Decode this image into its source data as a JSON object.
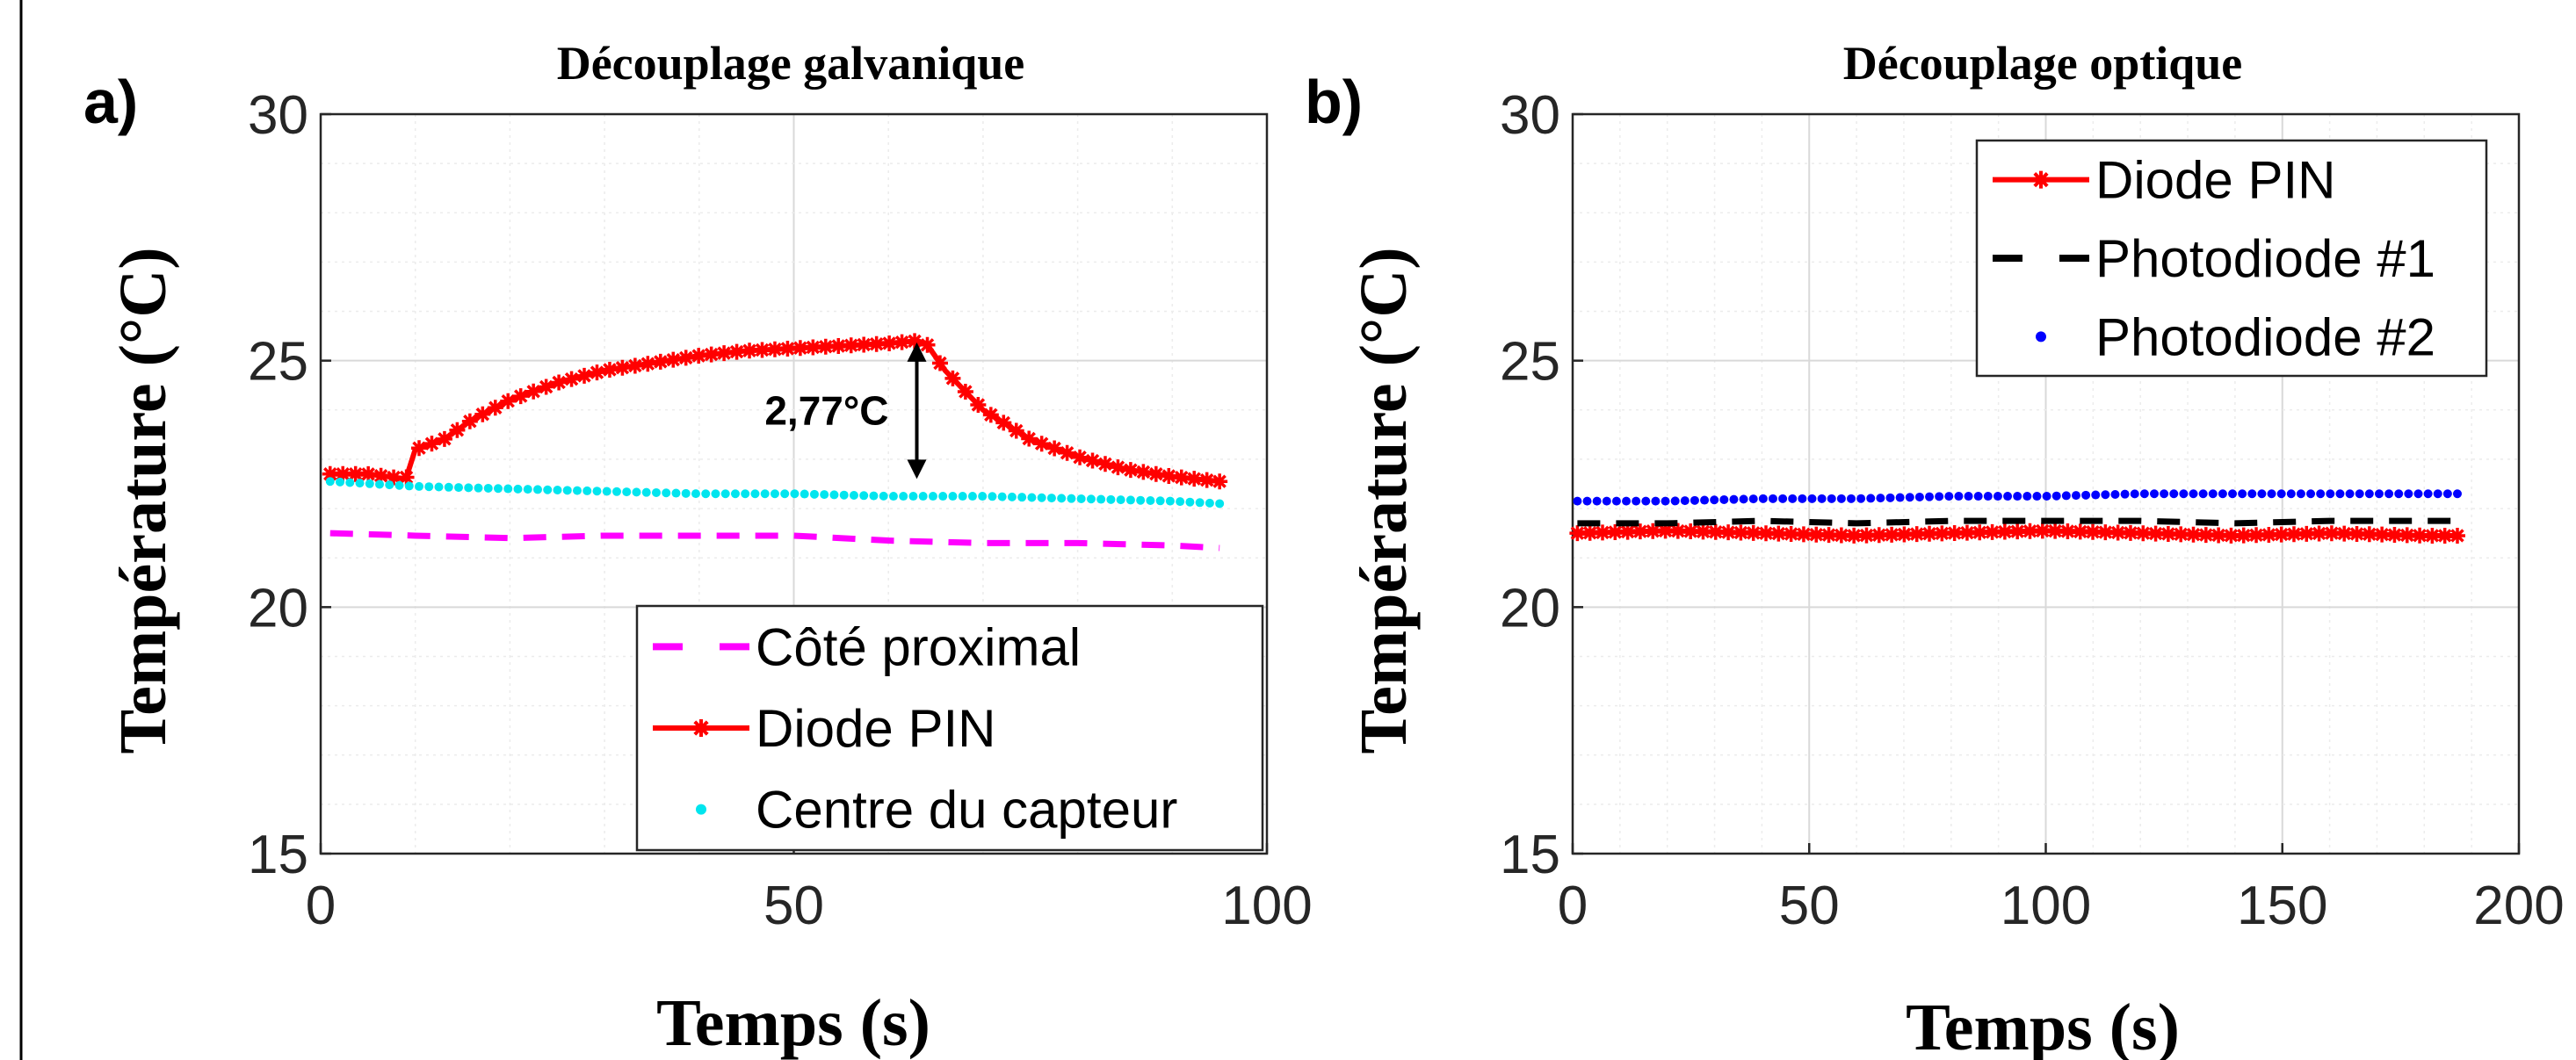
{
  "chart_data": [
    {
      "panel_label": "a)",
      "type": "line",
      "title": "Découplage galvanique",
      "xlabel": "Temps (s)",
      "ylabel": "Température (°C)",
      "xlim": [
        0,
        100
      ],
      "ylim": [
        15,
        30
      ],
      "xticks": [
        "0",
        "50",
        "100"
      ],
      "yticks": [
        "15",
        "20",
        "25",
        "30"
      ],
      "grid": true,
      "legend_position": "bottom-right",
      "annotation": {
        "text": "2,77°C",
        "x": 63,
        "y_from": 22.6,
        "y_to": 25.37
      },
      "series": [
        {
          "name": "Côté proximal",
          "color": "#ff00ff",
          "style": "dashed",
          "x": [
            1,
            10,
            20,
            30,
            40,
            50,
            60,
            70,
            80,
            90,
            95
          ],
          "y": [
            21.5,
            21.45,
            21.4,
            21.45,
            21.45,
            21.45,
            21.35,
            21.3,
            21.3,
            21.25,
            21.2
          ]
        },
        {
          "name": "Diode PIN",
          "color": "#ff0000",
          "style": "solid-star",
          "x": [
            1,
            5,
            9,
            10,
            13,
            16,
            20,
            25,
            30,
            35,
            40,
            45,
            50,
            55,
            60,
            63,
            64,
            66,
            70,
            75,
            80,
            85,
            90,
            95
          ],
          "y": [
            22.7,
            22.7,
            22.6,
            23.2,
            23.4,
            23.8,
            24.2,
            24.55,
            24.8,
            24.95,
            25.1,
            25.2,
            25.25,
            25.3,
            25.35,
            25.4,
            25.35,
            24.8,
            24.0,
            23.4,
            23.05,
            22.8,
            22.65,
            22.55
          ]
        },
        {
          "name": "Centre du capteur",
          "color": "#00e5ee",
          "style": "dotted",
          "x": [
            1,
            10,
            20,
            30,
            40,
            50,
            60,
            70,
            80,
            90,
            95
          ],
          "y": [
            22.55,
            22.45,
            22.4,
            22.35,
            22.3,
            22.3,
            22.25,
            22.25,
            22.2,
            22.15,
            22.1
          ]
        }
      ]
    },
    {
      "panel_label": "b)",
      "type": "line",
      "title": "Découplage optique",
      "xlabel": "Temps (s)",
      "ylabel": "Température (°C)",
      "xlim": [
        0,
        200
      ],
      "ylim": [
        15,
        30
      ],
      "xticks": [
        "0",
        "50",
        "100",
        "150",
        "200"
      ],
      "yticks": [
        "15",
        "20",
        "25",
        "30"
      ],
      "grid": true,
      "legend_position": "top-right",
      "series": [
        {
          "name": "Diode PIN",
          "color": "#ff0000",
          "style": "solid-star",
          "x": [
            1,
            20,
            40,
            60,
            80,
            100,
            120,
            140,
            160,
            180,
            187
          ],
          "y": [
            21.5,
            21.55,
            21.5,
            21.45,
            21.5,
            21.55,
            21.5,
            21.45,
            21.5,
            21.45,
            21.45
          ]
        },
        {
          "name": "Photodiode #1",
          "color": "#000000",
          "style": "dashed",
          "x": [
            1,
            20,
            40,
            60,
            80,
            100,
            120,
            140,
            160,
            180,
            187
          ],
          "y": [
            21.7,
            21.7,
            21.75,
            21.7,
            21.75,
            21.75,
            21.75,
            21.7,
            21.75,
            21.75,
            21.75
          ]
        },
        {
          "name": "Photodiode #2",
          "color": "#0000ff",
          "style": "dotted",
          "x": [
            1,
            20,
            40,
            60,
            80,
            100,
            120,
            140,
            160,
            180,
            187
          ],
          "y": [
            22.15,
            22.15,
            22.2,
            22.2,
            22.25,
            22.25,
            22.3,
            22.3,
            22.3,
            22.3,
            22.3
          ]
        }
      ]
    }
  ]
}
